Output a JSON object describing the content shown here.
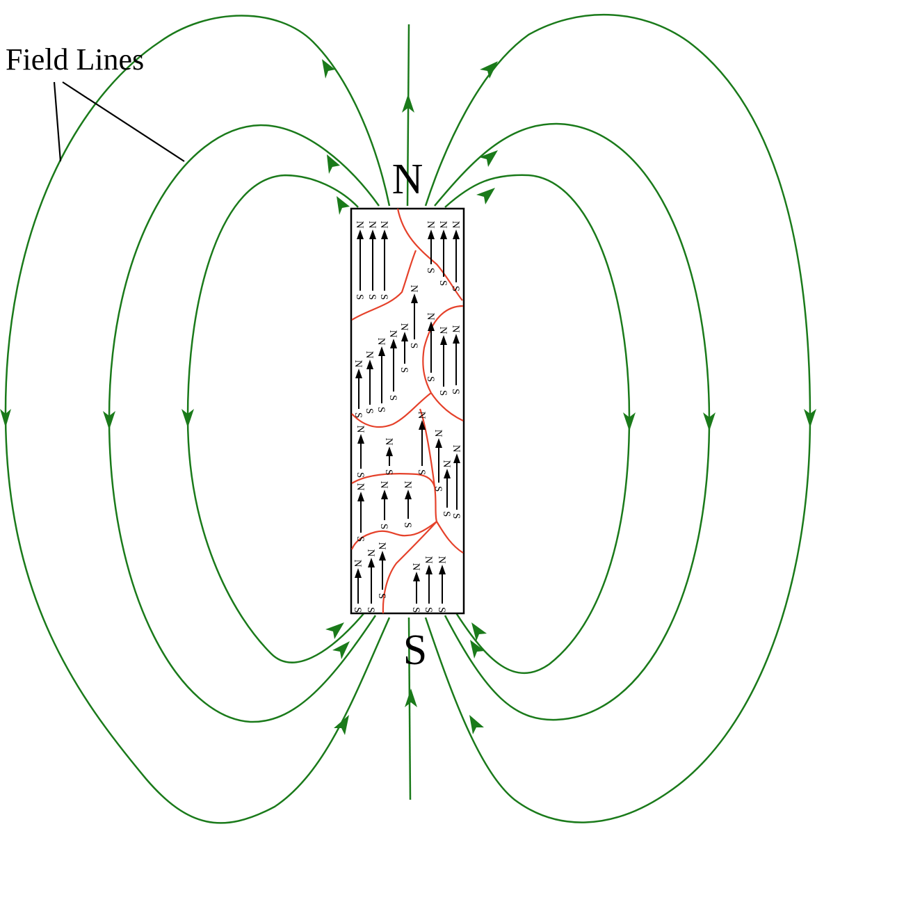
{
  "labels": {
    "field_lines": "Field Lines",
    "north_pole": "N",
    "south_pole": "S",
    "dipole_n": "N",
    "dipole_s": "S"
  },
  "colors": {
    "field_line": "#1a7a1a",
    "domain_wall": "#e5412a",
    "magnet_outline": "#000000",
    "dipole_arrow": "#000000",
    "background": "#ffffff"
  }
}
